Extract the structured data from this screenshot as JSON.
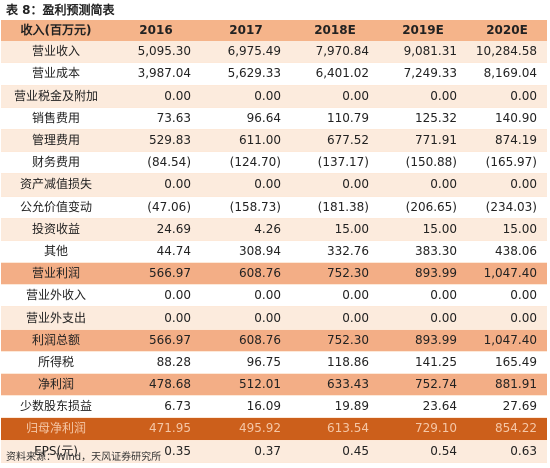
{
  "title": "表 8：盈利预测简表",
  "header": [
    "收入(百万元)",
    "2016",
    "2017",
    "2018E",
    "2019E",
    "2020E"
  ],
  "rows": [
    {
      "label": "营业收入",
      "values": [
        "5,095.30",
        "6,975.49",
        "7,970.84",
        "9,081.31",
        "10,284.58"
      ],
      "style": "even"
    },
    {
      "label": "营业成本",
      "values": [
        "3,987.04",
        "5,629.33",
        "6,401.02",
        "7,249.33",
        "8,169.04"
      ],
      "style": "odd"
    },
    {
      "label": "营业税金及附加",
      "values": [
        "0.00",
        "0.00",
        "0.00",
        "0.00",
        "0.00"
      ],
      "style": "even"
    },
    {
      "label": "销售费用",
      "values": [
        "73.63",
        "96.64",
        "110.79",
        "125.32",
        "140.90"
      ],
      "style": "odd"
    },
    {
      "label": "管理费用",
      "values": [
        "529.83",
        "611.00",
        "677.52",
        "771.91",
        "874.19"
      ],
      "style": "even"
    },
    {
      "label": "财务费用",
      "values": [
        "(84.54)",
        "(124.70)",
        "(137.17)",
        "(150.88)",
        "(165.97)"
      ],
      "style": "odd"
    },
    {
      "label": "资产减值损失",
      "values": [
        "0.00",
        "0.00",
        "0.00",
        "0.00",
        "0.00"
      ],
      "style": "even"
    },
    {
      "label": "公允价值变动",
      "values": [
        "(47.06)",
        "(158.73)",
        "(181.38)",
        "(206.65)",
        "(234.03)"
      ],
      "style": "odd"
    },
    {
      "label": "投资收益",
      "values": [
        "24.69",
        "4.26",
        "15.00",
        "15.00",
        "15.00"
      ],
      "style": "even"
    },
    {
      "label": "其他",
      "values": [
        "44.74",
        "308.94",
        "332.76",
        "383.30",
        "438.06"
      ],
      "style": "odd"
    },
    {
      "label": "营业利润",
      "values": [
        "566.97",
        "608.76",
        "752.30",
        "893.99",
        "1,047.40"
      ],
      "style": "hl"
    },
    {
      "label": "营业外收入",
      "values": [
        "0.00",
        "0.00",
        "0.00",
        "0.00",
        "0.00"
      ],
      "style": "odd"
    },
    {
      "label": "营业外支出",
      "values": [
        "0.00",
        "0.00",
        "0.00",
        "0.00",
        "0.00"
      ],
      "style": "even"
    },
    {
      "label": "利润总额",
      "values": [
        "566.97",
        "608.76",
        "752.30",
        "893.99",
        "1,047.40"
      ],
      "style": "hl"
    },
    {
      "label": "所得税",
      "values": [
        "88.28",
        "96.75",
        "118.86",
        "141.25",
        "165.49"
      ],
      "style": "odd"
    },
    {
      "label": "净利润",
      "values": [
        "478.68",
        "512.01",
        "633.43",
        "752.74",
        "881.91"
      ],
      "style": "hl"
    },
    {
      "label": "少数股东损益",
      "values": [
        "6.73",
        "16.09",
        "19.89",
        "23.64",
        "27.69"
      ],
      "style": "odd"
    },
    {
      "label": "归母净利润",
      "values": [
        "471.95",
        "495.92",
        "613.54",
        "729.10",
        "854.22"
      ],
      "style": "dark"
    },
    {
      "label": "EPS(元)",
      "values": [
        "0.35",
        "0.37",
        "0.45",
        "0.54",
        "0.63"
      ],
      "style": "even"
    }
  ],
  "source": "资料来源：Wind，天风证券研究所"
}
